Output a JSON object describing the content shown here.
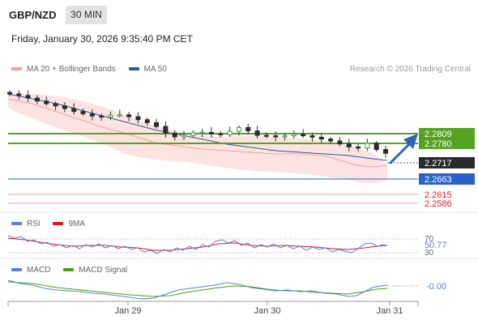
{
  "header": {
    "pair": "GBP/NZD",
    "timeframe": "30 MIN",
    "datetime": "Friday, January 30, 2026 9:35:40 PM CET"
  },
  "main_panel": {
    "legend": [
      {
        "label": "MA 20 + Bollinger Bands",
        "color": "#f08a8a"
      },
      {
        "label": "MA 50",
        "color": "#2c5aa0"
      }
    ],
    "source": "Research © 2026 Trading Central",
    "levels": [
      {
        "value": 2.2809,
        "label": "2.2809",
        "kind": "resistance",
        "style": "box-green"
      },
      {
        "value": 2.278,
        "label": "2.2780",
        "kind": "resistance",
        "style": "box-green"
      },
      {
        "value": 2.2717,
        "label": "2.2717",
        "kind": "last",
        "style": "box-dark"
      },
      {
        "value": 2.2663,
        "label": "2.2663",
        "kind": "pivot",
        "style": "box-blue"
      },
      {
        "value": 2.2615,
        "label": "2.2615",
        "kind": "support",
        "style": "text-red"
      },
      {
        "value": 2.2586,
        "label": "2.2586",
        "kind": "support",
        "style": "text-red"
      }
    ]
  },
  "rsi_panel": {
    "legend": [
      {
        "label": "RSI",
        "color": "#5b7fd6"
      },
      {
        "label": "9MA",
        "color": "#e01818"
      }
    ],
    "ticks": [
      "70",
      "30"
    ],
    "value_label": "50.77"
  },
  "macd_panel": {
    "legend": [
      {
        "label": "MACD",
        "color": "#5b7fd6"
      },
      {
        "label": "MACD Signal",
        "color": "#4aa010"
      }
    ],
    "value_label": "-0.00"
  },
  "x_axis": {
    "labels": [
      "Jan 29",
      "Jan 30",
      "Jan 31"
    ]
  },
  "chart_data": {
    "type": "candlestick",
    "title": "GBP/NZD 30 MIN",
    "ylim": [
      2.256,
      2.289
    ],
    "x": [
      "Jan 29",
      "Jan 30",
      "Jan 31"
    ],
    "close_approx": [
      2.2877,
      2.2873,
      2.2866,
      2.2858,
      2.2851,
      2.2845,
      2.2838,
      2.283,
      2.2824,
      2.2818,
      2.2815,
      2.282,
      2.2821,
      2.2816,
      2.2808,
      2.28,
      2.279,
      2.2772,
      2.2762,
      2.2766,
      2.2773,
      2.2774,
      2.277,
      2.2768,
      2.2777,
      2.2787,
      2.2778,
      2.2766,
      2.2765,
      2.2762,
      2.2765,
      2.2769,
      2.2765,
      2.2761,
      2.2756,
      2.2751,
      2.2743,
      2.2735,
      2.2732,
      2.2745,
      2.2728,
      2.2718
    ],
    "last": 2.2717,
    "levels": [
      2.2809,
      2.278,
      2.2717,
      2.2663,
      2.2615,
      2.2586
    ],
    "rsi_last": 50.77,
    "macd_last": -0.0
  }
}
